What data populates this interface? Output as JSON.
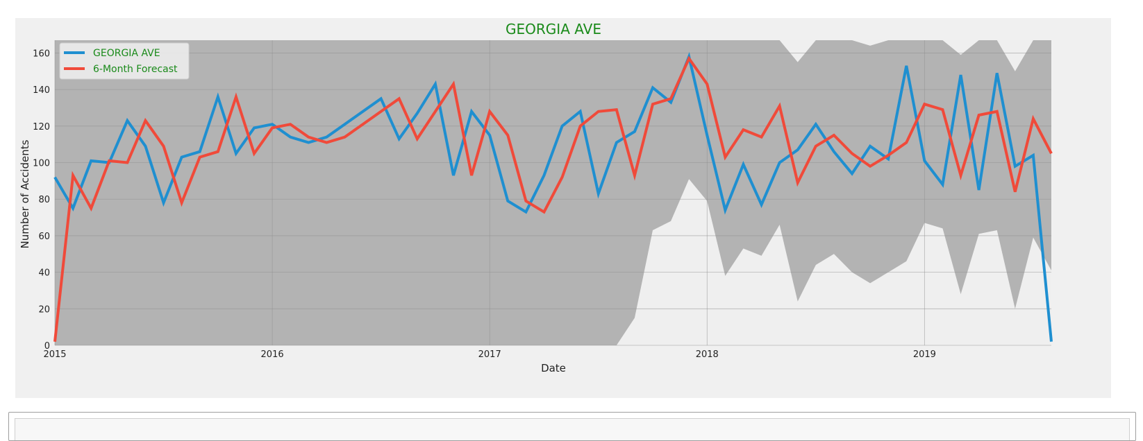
{
  "chart_data": {
    "type": "line",
    "title": "GEORGIA AVE",
    "xlabel": "Date",
    "ylabel": "Number of Accidents",
    "ylim": [
      0,
      167
    ],
    "xlim": [
      "2015-01",
      "2019-08"
    ],
    "x_ticks": [
      "2015",
      "2016",
      "2017",
      "2018",
      "2019"
    ],
    "y_ticks": [
      0,
      20,
      40,
      60,
      80,
      100,
      120,
      140,
      160
    ],
    "grid": true,
    "legend_position": "top-left",
    "colors": {
      "series1": "#1f8fd0",
      "series2": "#f04a3a",
      "band": "#b3b3b3",
      "background": "#efefef",
      "title": "#1a8a1a"
    },
    "x": [
      "2015-01",
      "2015-02",
      "2015-03",
      "2015-04",
      "2015-05",
      "2015-06",
      "2015-07",
      "2015-08",
      "2015-09",
      "2015-10",
      "2015-11",
      "2015-12",
      "2016-01",
      "2016-02",
      "2016-03",
      "2016-04",
      "2016-05",
      "2016-06",
      "2016-07",
      "2016-08",
      "2016-09",
      "2016-10",
      "2016-11",
      "2016-12",
      "2017-01",
      "2017-02",
      "2017-03",
      "2017-04",
      "2017-05",
      "2017-06",
      "2017-07",
      "2017-08",
      "2017-09",
      "2017-10",
      "2017-11",
      "2017-12",
      "2018-01",
      "2018-02",
      "2018-03",
      "2018-04",
      "2018-05",
      "2018-06",
      "2018-07",
      "2018-08",
      "2018-09",
      "2018-10",
      "2018-11",
      "2018-12",
      "2019-01",
      "2019-02",
      "2019-03",
      "2019-04",
      "2019-05",
      "2019-06",
      "2019-07",
      "2019-08"
    ],
    "series": [
      {
        "name": "GEORGIA AVE",
        "values": [
          92,
          75,
          101,
          100,
          123,
          109,
          78,
          103,
          106,
          136,
          105,
          119,
          121,
          114,
          111,
          114,
          121,
          128,
          135,
          113,
          127,
          143,
          93,
          128,
          115,
          79,
          73,
          93,
          120,
          128,
          83,
          111,
          117,
          141,
          133,
          158,
          115,
          74,
          99,
          77,
          100,
          107,
          121,
          106,
          94,
          109,
          102,
          153,
          101,
          88,
          148,
          85,
          149,
          98,
          104,
          2
        ]
      },
      {
        "name": "6-Month Forecast",
        "values": [
          2,
          93,
          75,
          101,
          100,
          123,
          109,
          78,
          103,
          106,
          136,
          105,
          119,
          121,
          114,
          111,
          114,
          121,
          128,
          135,
          113,
          128,
          143,
          93,
          128,
          115,
          79,
          73,
          92,
          120,
          128,
          129,
          93,
          132,
          135,
          157,
          143,
          103,
          118,
          114,
          131,
          89,
          109,
          115,
          105,
          98,
          104,
          111,
          132,
          129,
          93,
          126,
          128,
          84,
          124,
          105
        ]
      }
    ],
    "confidence_band": {
      "upper": [
        167,
        167,
        167,
        167,
        167,
        167,
        167,
        167,
        167,
        167,
        167,
        167,
        167,
        167,
        167,
        167,
        167,
        167,
        167,
        167,
        167,
        167,
        167,
        167,
        167,
        167,
        167,
        167,
        167,
        167,
        167,
        167,
        167,
        167,
        167,
        167,
        167,
        167,
        167,
        167,
        167,
        155,
        167,
        167,
        167,
        164,
        167,
        167,
        167,
        167,
        159,
        167,
        167,
        150,
        167,
        167
      ],
      "lower": [
        0,
        0,
        0,
        0,
        0,
        0,
        0,
        0,
        0,
        0,
        0,
        0,
        0,
        0,
        0,
        0,
        0,
        0,
        0,
        0,
        0,
        0,
        0,
        0,
        0,
        0,
        0,
        0,
        0,
        0,
        0,
        0,
        15,
        63,
        68,
        91,
        79,
        38,
        53,
        49,
        66,
        24,
        44,
        50,
        40,
        34,
        40,
        46,
        67,
        64,
        28,
        61,
        63,
        20,
        59,
        41
      ]
    }
  }
}
